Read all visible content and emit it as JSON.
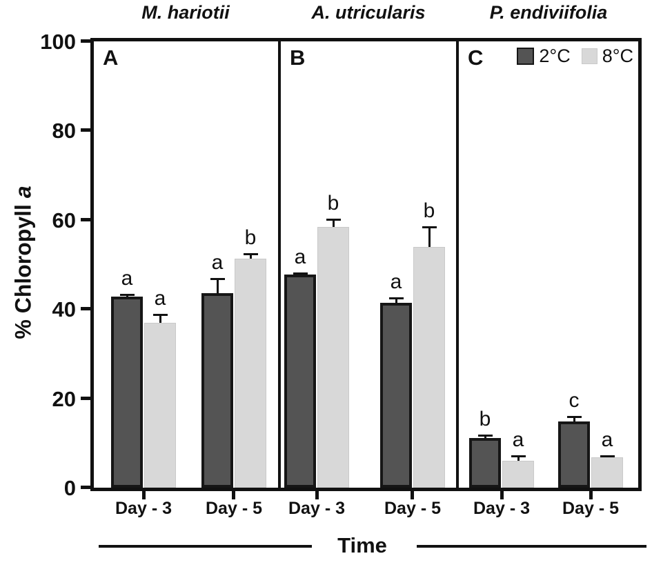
{
  "chart_data": {
    "type": "bar",
    "title": "",
    "ylabel": "% Chloropyll a",
    "ylabel_rich": {
      "prefix": "% Chloropyll ",
      "italic": "a"
    },
    "xlabel": "Time",
    "ylim": [
      0,
      100
    ],
    "yticks": [
      0,
      20,
      40,
      60,
      80,
      100
    ],
    "grid": false,
    "categories": [
      "Day - 3",
      "Day - 5"
    ],
    "legend": {
      "position": "top-right of panel C",
      "entries": [
        {
          "name": "2°C",
          "color": "#545454"
        },
        {
          "name": "8°C",
          "color": "#d8d8d8"
        }
      ]
    },
    "panels": [
      {
        "panel_label": "A",
        "species": "M. hariotii",
        "series": [
          {
            "name": "2°C",
            "values": [
              42.8,
              43.6
            ],
            "errors": [
              0.6,
              3.4
            ],
            "sig_letters": [
              "a",
              "a"
            ]
          },
          {
            "name": "8°C",
            "values": [
              37.0,
              51.3
            ],
            "errors": [
              2.0,
              1.2
            ],
            "sig_letters": [
              "a",
              "b"
            ]
          }
        ]
      },
      {
        "panel_label": "B",
        "species": "A. utricularis",
        "series": [
          {
            "name": "2°C",
            "values": [
              47.8,
              41.4
            ],
            "errors": [
              0.5,
              1.3
            ],
            "sig_letters": [
              "a",
              "a"
            ]
          },
          {
            "name": "8°C",
            "values": [
              58.4,
              54.0
            ],
            "errors": [
              1.9,
              4.6
            ],
            "sig_letters": [
              "b",
              "b"
            ]
          }
        ]
      },
      {
        "panel_label": "C",
        "species": "P. endiviifolia",
        "series": [
          {
            "name": "2°C",
            "values": [
              11.2,
              14.9
            ],
            "errors": [
              0.8,
              1.2
            ],
            "sig_letters": [
              "b",
              "c"
            ]
          },
          {
            "name": "8°C",
            "values": [
              6.1,
              6.8
            ],
            "errors": [
              1.3,
              0.4
            ],
            "sig_letters": [
              "a",
              "a"
            ]
          }
        ]
      }
    ],
    "colors": {
      "2C_fill": "#545454",
      "2C_border": "#161616",
      "8C_fill": "#d8d8d8",
      "8C_border": "#c9c9c9"
    }
  }
}
